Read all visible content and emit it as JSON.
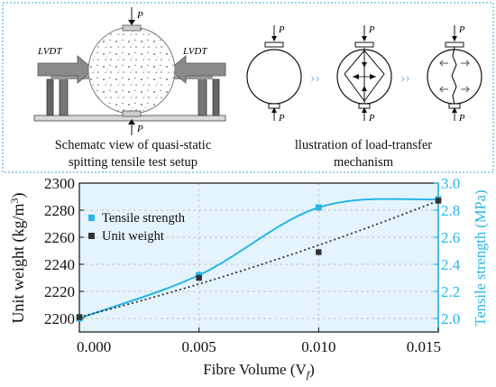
{
  "top_panel": {
    "labels": {
      "load": "P",
      "lvdt_left": "LVDT",
      "lvdt_right": "LVDT"
    },
    "captions": {
      "setup_line1": "Schematc view of quasi-static",
      "setup_line2": "spitting tensile test setup",
      "mechanism_line1": "llustration of load-transfer",
      "mechanism_line2": "mechanism"
    },
    "colors": {
      "border": "#3aa6d8",
      "arrow": "#8a8a8a",
      "chevron": "#7cc4e8"
    }
  },
  "chart_data": {
    "type": "scatter",
    "x": [
      0.0,
      0.005,
      0.01,
      0.015
    ],
    "xlabel_main": "Fibre Volume (V",
    "xlabel_sub": "f",
    "xlabel_end": ")",
    "x_ticks": [
      "0.000",
      "0.005",
      "0.010",
      "0.015"
    ],
    "xlim": [
      0.0,
      0.015
    ],
    "ylabel_left_main": "Unit weight (kg/m",
    "ylabel_left_sup": "3",
    "ylabel_left_end": ")",
    "ylim_left": [
      2190,
      2300
    ],
    "y_ticks_left": [
      "2200",
      "2220",
      "2240",
      "2260",
      "2280",
      "2300"
    ],
    "ylabel_right": "Tensile strength (MPa)",
    "ylim_right": [
      1.9,
      3.0
    ],
    "y_ticks_right": [
      "2.0",
      "2.2",
      "2.4",
      "2.6",
      "2.8",
      "3.0"
    ],
    "grid": true,
    "legend_position": "top-left",
    "series": [
      {
        "name": "Tensile strength",
        "axis": "right",
        "color": "#29b6e6",
        "values": [
          2.0,
          2.32,
          2.82,
          2.88
        ],
        "fit": "solid-curve"
      },
      {
        "name": "Unit weight",
        "axis": "left",
        "color": "#333333",
        "values": [
          2201,
          2230,
          2249,
          2287
        ],
        "fit": "dotted-line"
      }
    ]
  }
}
